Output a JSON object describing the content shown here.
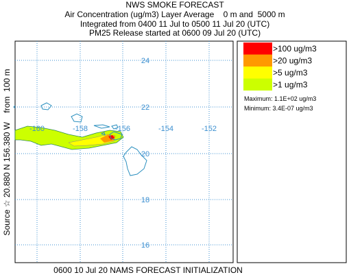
{
  "header": {
    "title": "NWS SMOKE FORECAST",
    "lines": [
      "Air Concentration (ug/m3) Layer Average    0 m and  5000 m",
      "Integrated from 0400 11 Jul to 0500 11 Jul 20 (UTC)",
      "PM25 Release started at 0600 09 Jul 20 (UTC)"
    ]
  },
  "map": {
    "latitude_labels": [
      "24",
      "22",
      "20",
      "18",
      "16"
    ],
    "longitude_labels": [
      "-160",
      "-158",
      "-156",
      "-154",
      "-152"
    ],
    "source_label": "Source ☆ 20.880 N 156.380 W    from  100 m"
  },
  "legend": {
    "entries": [
      {
        "label": ">100 ug/m3",
        "color": "#ff0000"
      },
      {
        "label": ">20 ug/m3",
        "color": "#ff9900"
      },
      {
        "label": ">5 ug/m3",
        "color": "#ffff00"
      },
      {
        "label": ">1 ug/m3",
        "color": "#ccff00"
      }
    ],
    "maximum": "Maximum: 1.1E+02 ug/m3",
    "minimum": "Minimum: 3.4E-07 ug/m3"
  },
  "footer": "0600 10 Jul 20 NAMS FORECAST INITIALIZATION"
}
